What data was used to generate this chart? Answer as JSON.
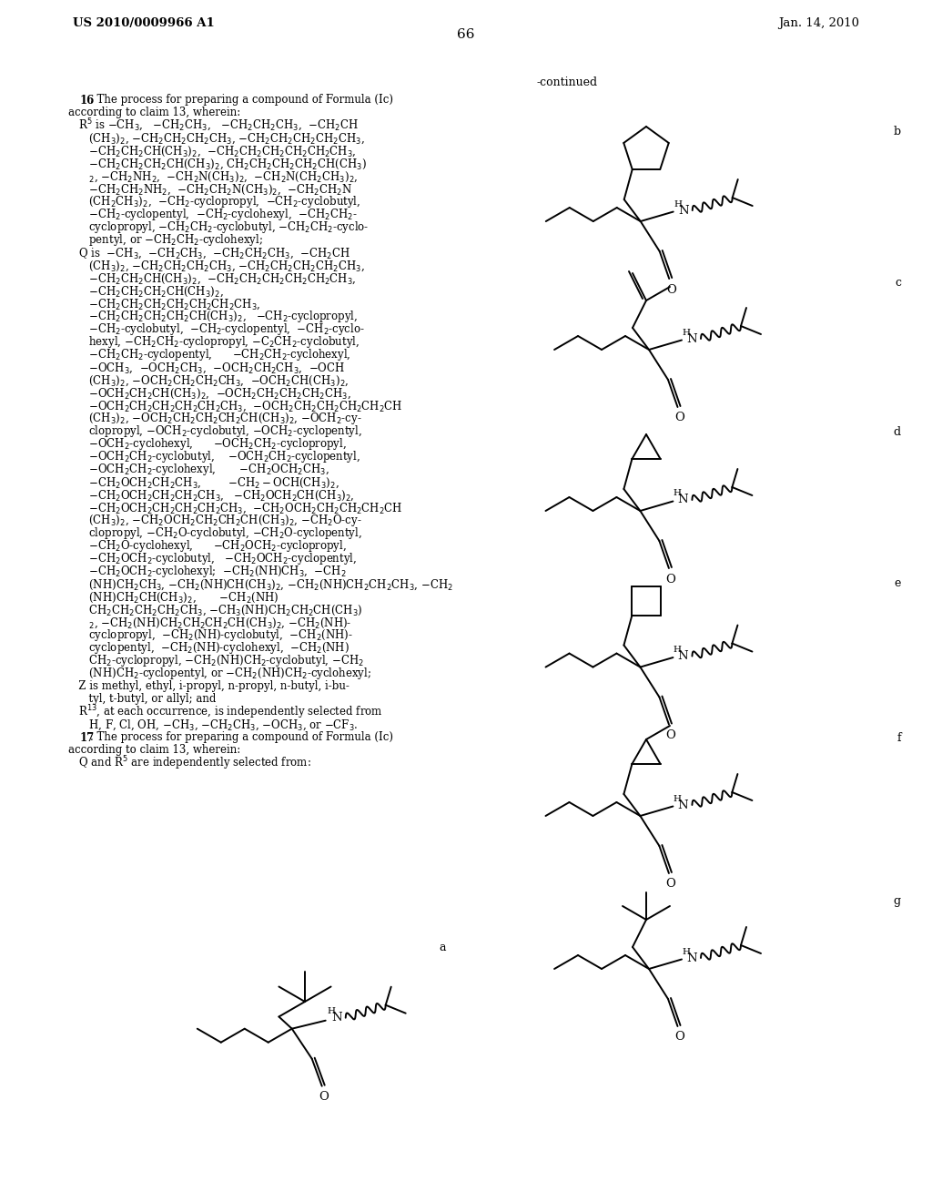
{
  "bg": "#ffffff",
  "header_left": "US 2010/0009966 A1",
  "header_right": "Jan. 14, 2010",
  "page_num": "66",
  "continued": "-continued",
  "structures": [
    "a",
    "b",
    "c",
    "d",
    "e",
    "f",
    "g"
  ]
}
